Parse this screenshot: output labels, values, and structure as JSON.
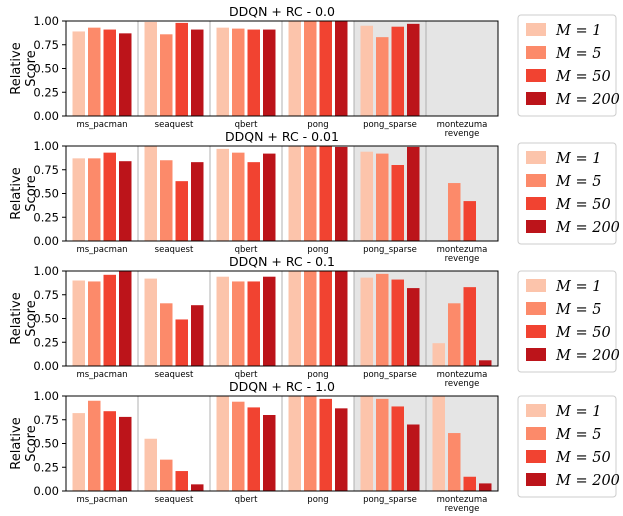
{
  "figure": {
    "ylabel_lines": [
      "Relative",
      "Score"
    ],
    "legend": {
      "entries": [
        {
          "label": "M = 1",
          "color": "#fcc4ab"
        },
        {
          "label": "M = 5",
          "color": "#fc8a6a"
        },
        {
          "label": "M = 50",
          "color": "#f14331"
        },
        {
          "label": "M = 200",
          "color": "#bc141a"
        }
      ]
    },
    "shaded_color": "#e5e5e5"
  },
  "chart_data": [
    {
      "type": "bar",
      "title": "DDQN + RC - 0.0",
      "categories": [
        "ms_pacman",
        "seaquest",
        "qbert",
        "pong",
        "pong_sparse",
        "montezuma revenge"
      ],
      "category_lines": [
        [
          "ms_pacman"
        ],
        [
          "seaquest"
        ],
        [
          "qbert"
        ],
        [
          "pong"
        ],
        [
          "pong_sparse"
        ],
        [
          "montezuma",
          "revenge"
        ]
      ],
      "shaded_categories": [
        "pong_sparse",
        "montezuma revenge"
      ],
      "ylim": [
        0,
        1.0
      ],
      "yticks": [
        "0.00",
        "0.25",
        "0.50",
        "0.75",
        "1.00"
      ],
      "ylabel": "Relative Score",
      "series": [
        {
          "name": "M = 1",
          "values": [
            0.89,
            0.99,
            0.93,
            1.0,
            0.95,
            0.0
          ]
        },
        {
          "name": "M = 5",
          "values": [
            0.93,
            0.86,
            0.92,
            1.0,
            0.83,
            0.0
          ]
        },
        {
          "name": "M = 50",
          "values": [
            0.91,
            0.98,
            0.91,
            1.0,
            0.94,
            0.0
          ]
        },
        {
          "name": "M = 200",
          "values": [
            0.87,
            0.91,
            0.91,
            1.0,
            0.97,
            0.0
          ]
        }
      ]
    },
    {
      "type": "bar",
      "title": "DDQN + RC - 0.01",
      "categories": [
        "ms_pacman",
        "seaquest",
        "qbert",
        "pong",
        "pong_sparse",
        "montezuma revenge"
      ],
      "category_lines": [
        [
          "ms_pacman"
        ],
        [
          "seaquest"
        ],
        [
          "qbert"
        ],
        [
          "pong"
        ],
        [
          "pong_sparse"
        ],
        [
          "montezuma",
          "revenge"
        ]
      ],
      "shaded_categories": [
        "pong_sparse",
        "montezuma revenge"
      ],
      "ylim": [
        0,
        1.0
      ],
      "yticks": [
        "0.00",
        "0.25",
        "0.50",
        "0.75",
        "1.00"
      ],
      "ylabel": "Relative Score",
      "series": [
        {
          "name": "M = 1",
          "values": [
            0.87,
            1.0,
            0.97,
            1.0,
            0.94,
            0.0
          ]
        },
        {
          "name": "M = 5",
          "values": [
            0.87,
            0.85,
            0.93,
            1.0,
            0.92,
            0.61
          ]
        },
        {
          "name": "M = 50",
          "values": [
            0.93,
            0.63,
            0.83,
            1.0,
            0.8,
            0.42
          ]
        },
        {
          "name": "M = 200",
          "values": [
            0.84,
            0.83,
            0.92,
            0.99,
            0.99,
            0.0
          ]
        }
      ]
    },
    {
      "type": "bar",
      "title": "DDQN + RC - 0.1",
      "categories": [
        "ms_pacman",
        "seaquest",
        "qbert",
        "pong",
        "pong_sparse",
        "montezuma revenge"
      ],
      "category_lines": [
        [
          "ms_pacman"
        ],
        [
          "seaquest"
        ],
        [
          "qbert"
        ],
        [
          "pong"
        ],
        [
          "pong_sparse"
        ],
        [
          "montezuma",
          "revenge"
        ]
      ],
      "shaded_categories": [
        "pong_sparse",
        "montezuma revenge"
      ],
      "ylim": [
        0,
        1.0
      ],
      "yticks": [
        "0.00",
        "0.25",
        "0.50",
        "0.75",
        "1.00"
      ],
      "ylabel": "Relative Score",
      "series": [
        {
          "name": "M = 1",
          "values": [
            0.9,
            0.92,
            0.94,
            1.0,
            0.93,
            0.24
          ]
        },
        {
          "name": "M = 5",
          "values": [
            0.89,
            0.66,
            0.89,
            1.0,
            0.97,
            0.66
          ]
        },
        {
          "name": "M = 50",
          "values": [
            0.96,
            0.49,
            0.89,
            1.0,
            0.91,
            0.83
          ]
        },
        {
          "name": "M = 200",
          "values": [
            1.0,
            0.64,
            0.94,
            1.0,
            0.82,
            0.06
          ]
        }
      ]
    },
    {
      "type": "bar",
      "title": "DDQN + RC - 1.0",
      "categories": [
        "ms_pacman",
        "seaquest",
        "qbert",
        "pong",
        "pong_sparse",
        "montezuma revenge"
      ],
      "category_lines": [
        [
          "ms_pacman"
        ],
        [
          "seaquest"
        ],
        [
          "qbert"
        ],
        [
          "pong"
        ],
        [
          "pong_sparse"
        ],
        [
          "montezuma",
          "revenge"
        ]
      ],
      "shaded_categories": [
        "pong_sparse",
        "montezuma revenge"
      ],
      "ylim": [
        0,
        1.0
      ],
      "yticks": [
        "0.00",
        "0.25",
        "0.50",
        "0.75",
        "1.00"
      ],
      "ylabel": "Relative Score",
      "series": [
        {
          "name": "M = 1",
          "values": [
            0.82,
            0.55,
            1.0,
            1.0,
            1.0,
            1.0
          ]
        },
        {
          "name": "M = 5",
          "values": [
            0.95,
            0.33,
            0.94,
            1.0,
            0.97,
            0.61
          ]
        },
        {
          "name": "M = 50",
          "values": [
            0.84,
            0.21,
            0.88,
            0.97,
            0.89,
            0.15
          ]
        },
        {
          "name": "M = 200",
          "values": [
            0.78,
            0.07,
            0.8,
            0.87,
            0.7,
            0.08
          ]
        }
      ]
    }
  ]
}
